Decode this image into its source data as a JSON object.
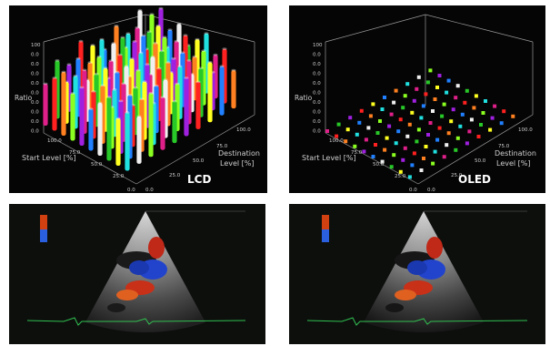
{
  "panels": [
    {
      "id": "lcd",
      "tag": "LCD",
      "axis_z": "Ratio",
      "axis_x": [
        "Start Level [%]"
      ],
      "axis_y": [
        "Destination",
        "Level [%]"
      ],
      "z_ticks": [
        "100",
        "0.0",
        "0.0",
        "0.0",
        "0.0",
        "0.0",
        "0.0",
        "0.0",
        "0.0",
        "0.0"
      ],
      "x_ticks": [
        "100.0",
        "75.0",
        "50.0",
        "25.0",
        "0.0"
      ],
      "y_ticks": [
        "0.0",
        "25.0",
        "50.0",
        "75.0",
        "100.0"
      ]
    },
    {
      "id": "oled",
      "tag": "OLED",
      "axis_z": "Ratio",
      "axis_x": [
        "Start Level [%]"
      ],
      "axis_y": [
        "Destination",
        "Level [%]"
      ],
      "z_ticks": [
        "100",
        "0.0",
        "0.0",
        "0.0",
        "0.0",
        "0.0",
        "0.0",
        "0.0",
        "0.0",
        "0.0"
      ],
      "x_ticks": [
        "100.0",
        "75.0",
        "50.0",
        "25.0",
        "0.0"
      ],
      "y_ticks": [
        "0.0",
        "25.0",
        "50.0",
        "75.0",
        "100.0"
      ]
    }
  ],
  "bar_colors": [
    "#e0208a",
    "#28c828",
    "#a020e0",
    "#ff2020",
    "#ffff20",
    "#2080ff",
    "#ff8020",
    "#20e0e0",
    "#f0f0f0",
    "#8aff20"
  ],
  "ultrasound": [
    {
      "id": "us1",
      "caption": "",
      "scale_top": ""
    },
    {
      "id": "us2",
      "caption": "",
      "scale_top": ""
    }
  ]
}
